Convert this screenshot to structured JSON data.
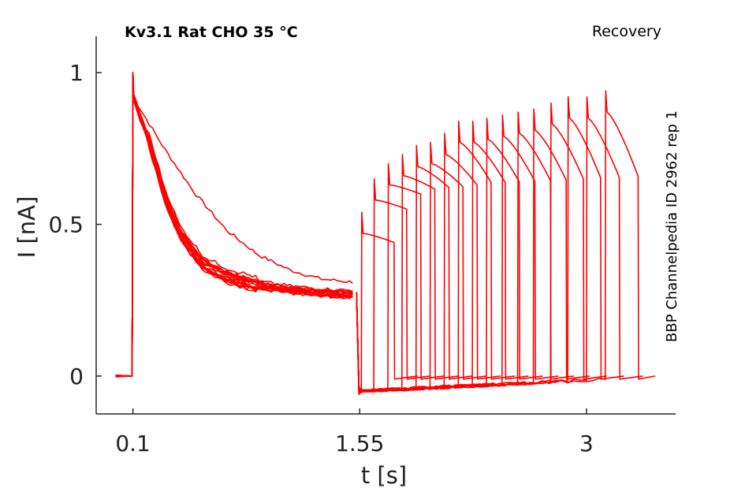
{
  "chart_data": {
    "type": "line",
    "title": "Kv3.1  Rat  CHO  35 °C",
    "annotation_top_right": "Recovery",
    "annotation_right_vertical": "BBP Channelpedia ID 2962 rep 1",
    "xlabel": "t [s]",
    "ylabel": "I [nA]",
    "xlim": [
      -0.135,
      3.57
    ],
    "ylim": [
      -0.125,
      1.12
    ],
    "x_ticks": [
      0.1,
      1.55,
      3
    ],
    "x_tick_labels": [
      "0.1",
      "1.55",
      "3"
    ],
    "y_ticks": [
      0,
      0.5,
      1
    ],
    "y_tick_labels": [
      "0",
      "0.5",
      "1"
    ],
    "grid": false,
    "line_color": "#ff0000",
    "conditioning": {
      "baseline_x": [
        -0.01,
        0.1
      ],
      "baseline_y": 0.0,
      "peak_y": 1.0,
      "fast_decay": {
        "x": [
          0.1,
          0.2,
          0.3,
          0.4,
          0.55,
          0.7,
          0.9,
          1.1,
          1.3,
          1.5
        ],
        "y": [
          0.92,
          0.78,
          0.6,
          0.47,
          0.37,
          0.33,
          0.3,
          0.285,
          0.275,
          0.27
        ]
      },
      "slow_decay": {
        "x": [
          0.1,
          0.3,
          0.5,
          0.7,
          0.9,
          1.1,
          1.3,
          1.5
        ],
        "y": [
          0.92,
          0.75,
          0.6,
          0.48,
          0.4,
          0.35,
          0.32,
          0.31
        ]
      }
    },
    "test_pulses": {
      "start_x": [
        1.56,
        1.64,
        1.73,
        1.82,
        1.91,
        2.0,
        2.09,
        2.18,
        2.27,
        2.36,
        2.46,
        2.56,
        2.66,
        2.77,
        2.88,
        3.0,
        3.12
      ],
      "peak_y": [
        0.54,
        0.65,
        0.7,
        0.73,
        0.76,
        0.77,
        0.8,
        0.84,
        0.84,
        0.85,
        0.86,
        0.87,
        0.88,
        0.9,
        0.92,
        0.92,
        0.94
      ],
      "duration": 0.21,
      "end_current": 0.59,
      "baseline_y": -0.05,
      "last_end_x": 3.42
    }
  }
}
